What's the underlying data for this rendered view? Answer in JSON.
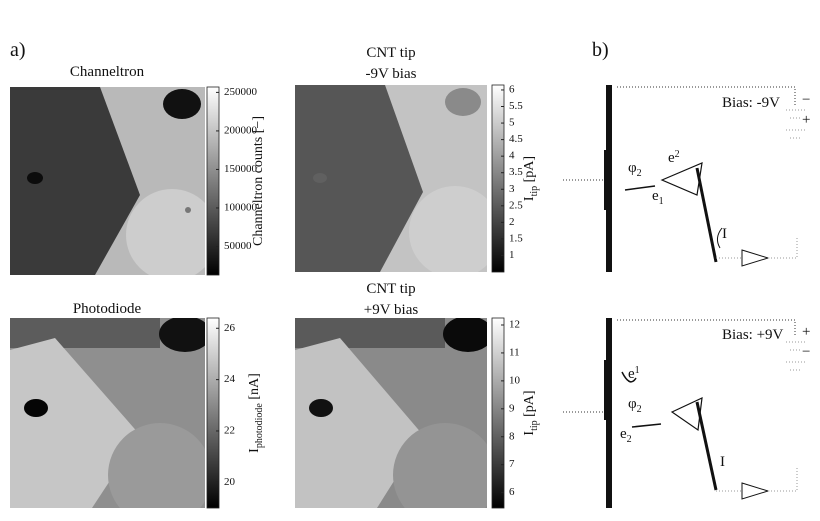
{
  "panel_a_label": "a)",
  "panel_b_label": "b)",
  "maps": [
    {
      "title": [
        "Channeltron"
      ],
      "colorbar": {
        "range": [
          13000,
          257000
        ],
        "ticks": [
          50000,
          100000,
          150000,
          200000,
          250000
        ],
        "label": {
          "main": "Channeltron counts [−]"
        }
      }
    },
    {
      "title": [
        "CNT tip",
        "-9V bias"
      ],
      "colorbar": {
        "range": [
          0.5,
          6.15
        ],
        "ticks": [
          1,
          1.5,
          2,
          2.5,
          3,
          3.5,
          4,
          4.5,
          5,
          5.5,
          6
        ],
        "label": {
          "main": "I",
          "sub": "tip",
          "unit": " [pA]"
        }
      }
    },
    {
      "title": [
        "Photodiode"
      ],
      "colorbar": {
        "range": [
          19,
          26.4
        ],
        "ticks": [
          20,
          22,
          24,
          26
        ],
        "label": {
          "main": "I",
          "sub": "photodiode",
          "unit": " [nA]"
        }
      }
    },
    {
      "title": [
        "CNT tip",
        "+9V bias"
      ],
      "colorbar": {
        "range": [
          5.45,
          12.25
        ],
        "ticks": [
          6,
          7,
          8,
          9,
          10,
          11,
          12
        ],
        "label": {
          "main": "I",
          "sub": "tip",
          "unit": " [pA]"
        }
      }
    }
  ],
  "diagram": {
    "top": {
      "bias": "Bias: -9V",
      "sign_upper": "−",
      "sign_lower": "+",
      "phi": "φ",
      "phi_sub": "2",
      "e_upper": "e",
      "e_upper_sub": "2",
      "e_lower": "e",
      "e_lower_sub": "1",
      "current": "I"
    },
    "bottom": {
      "bias": "Bias: +9V",
      "sign_upper": "+",
      "sign_lower": "−",
      "phi": "φ",
      "phi_sub": "2",
      "e_upper": "e",
      "e_upper_sub": "1",
      "e_lower": "e",
      "e_lower_sub": "2",
      "current": "I"
    }
  }
}
